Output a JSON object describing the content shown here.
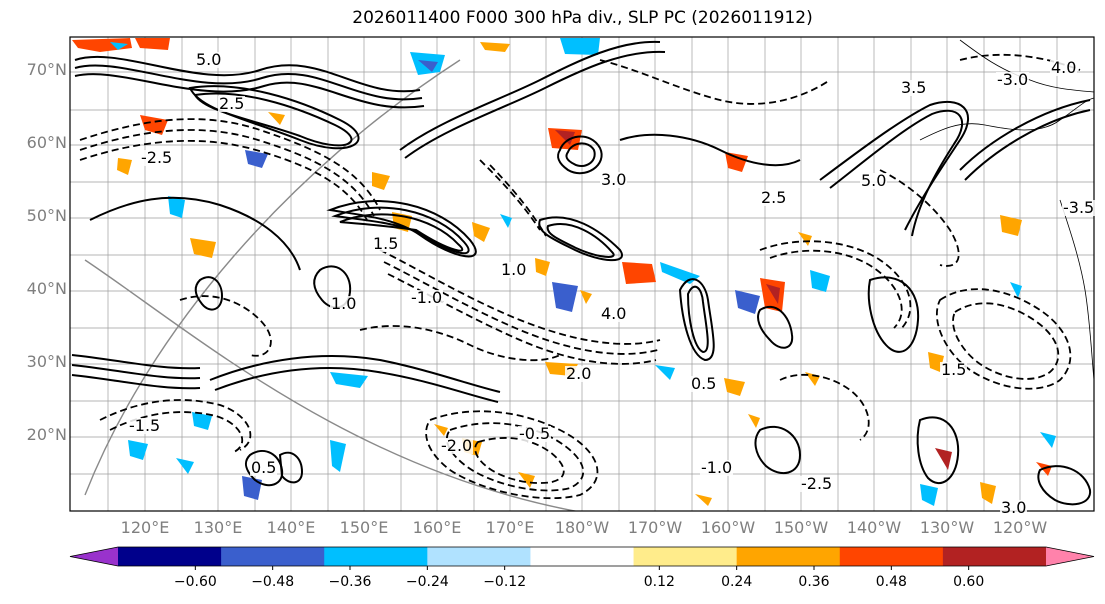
{
  "title": "2026011400 F000 300 hPa div., SLP PC (2026011912)",
  "lat_labels": [
    "70°N",
    "60°N",
    "50°N",
    "40°N",
    "30°N",
    "20°N"
  ],
  "lat_values": [
    70,
    60,
    50,
    40,
    30,
    20
  ],
  "lon_labels": [
    "120°E",
    "130°E",
    "140°E",
    "150°E",
    "160°E",
    "170°E",
    "180°W",
    "170°W",
    "160°W",
    "150°W",
    "140°W",
    "130°W",
    "120°W"
  ],
  "colorbar": {
    "tick_labels": [
      "−0.60",
      "−0.48",
      "−0.36",
      "−0.24",
      "−0.12",
      "0.12",
      "0.24",
      "0.36",
      "0.48",
      "0.60"
    ],
    "tick_values": [
      -0.6,
      -0.48,
      -0.36,
      -0.24,
      -0.12,
      0.12,
      0.24,
      0.36,
      0.48,
      0.6
    ],
    "colors": [
      "#9932cc",
      "#00008b",
      "#3a5fcd",
      "#00bfff",
      "#b0e2ff",
      "#ffffff",
      "#ffec8b",
      "#ffa500",
      "#ff4500",
      "#b22222",
      "#ff82ab"
    ]
  },
  "contour_labels": [
    "5.0",
    "3.0",
    "2.5",
    "1.5",
    "1.0",
    "0.5",
    "-1.5",
    "-2.0",
    "-0.5",
    "-1.0",
    "-2.5",
    "-3.0",
    "-3.5",
    "3.5",
    "2.0",
    "4.0"
  ]
}
